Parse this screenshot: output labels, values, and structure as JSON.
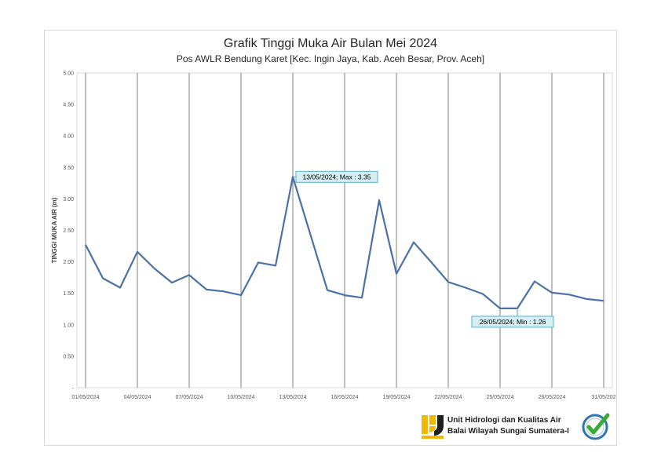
{
  "chart_data": {
    "type": "line",
    "title": "Grafik Tinggi Muka Air Bulan Mei 2024",
    "subtitle": "Pos AWLR Bendung Karet [Kec. Ingin Jaya, Kab. Aceh Besar, Prov. Aceh]",
    "ylabel": "TINGGI MUKA AIR (m)",
    "xlabel": "",
    "ylim": [
      0,
      5
    ],
    "y_ticks": [
      "-",
      "0.50",
      "1.00",
      "1.50",
      "2.00",
      "2.50",
      "3.00",
      "3.50",
      "4.00",
      "4.50",
      "5.00"
    ],
    "x_ticks": [
      "01/05/2024",
      "04/05/2024",
      "07/05/2024",
      "10/05/2024",
      "13/05/2024",
      "16/05/2024",
      "19/05/2024",
      "22/05/2024",
      "25/05/2024",
      "28/05/2024",
      "31/05/202"
    ],
    "grid": "vertical",
    "series_color": "#4a72a8",
    "x": [
      "01/05/2024",
      "02/05/2024",
      "03/05/2024",
      "04/05/2024",
      "05/05/2024",
      "06/05/2024",
      "07/05/2024",
      "08/05/2024",
      "09/05/2024",
      "10/05/2024",
      "11/05/2024",
      "12/05/2024",
      "13/05/2024",
      "14/05/2024",
      "15/05/2024",
      "16/05/2024",
      "17/05/2024",
      "18/05/2024",
      "19/05/2024",
      "20/05/2024",
      "21/05/2024",
      "22/05/2024",
      "23/05/2024",
      "24/05/2024",
      "25/05/2024",
      "26/05/2024",
      "27/05/2024",
      "28/05/2024",
      "29/05/2024",
      "30/05/2024",
      "31/05/2024"
    ],
    "values": [
      2.27,
      1.74,
      1.59,
      2.16,
      1.89,
      1.67,
      1.79,
      1.56,
      1.53,
      1.47,
      1.99,
      1.94,
      3.35,
      2.45,
      1.55,
      1.47,
      1.43,
      2.98,
      1.81,
      2.31,
      2.0,
      1.68,
      1.59,
      1.49,
      1.26,
      1.26,
      1.69,
      1.51,
      1.48,
      1.41,
      1.38
    ],
    "annotations": [
      {
        "text": "13/05/2024; Max : 3.35",
        "index": 12
      },
      {
        "text": "26/05/2024; Min : 1.26",
        "index": 25
      }
    ]
  },
  "footer": {
    "org_line1": "Unit Hidrologi dan Kualitas Air",
    "org_line2": "Balai Wilayah Sungai Sumatera-I",
    "logo_left": "pupr-logo",
    "logo_right": "check-badge-logo"
  }
}
